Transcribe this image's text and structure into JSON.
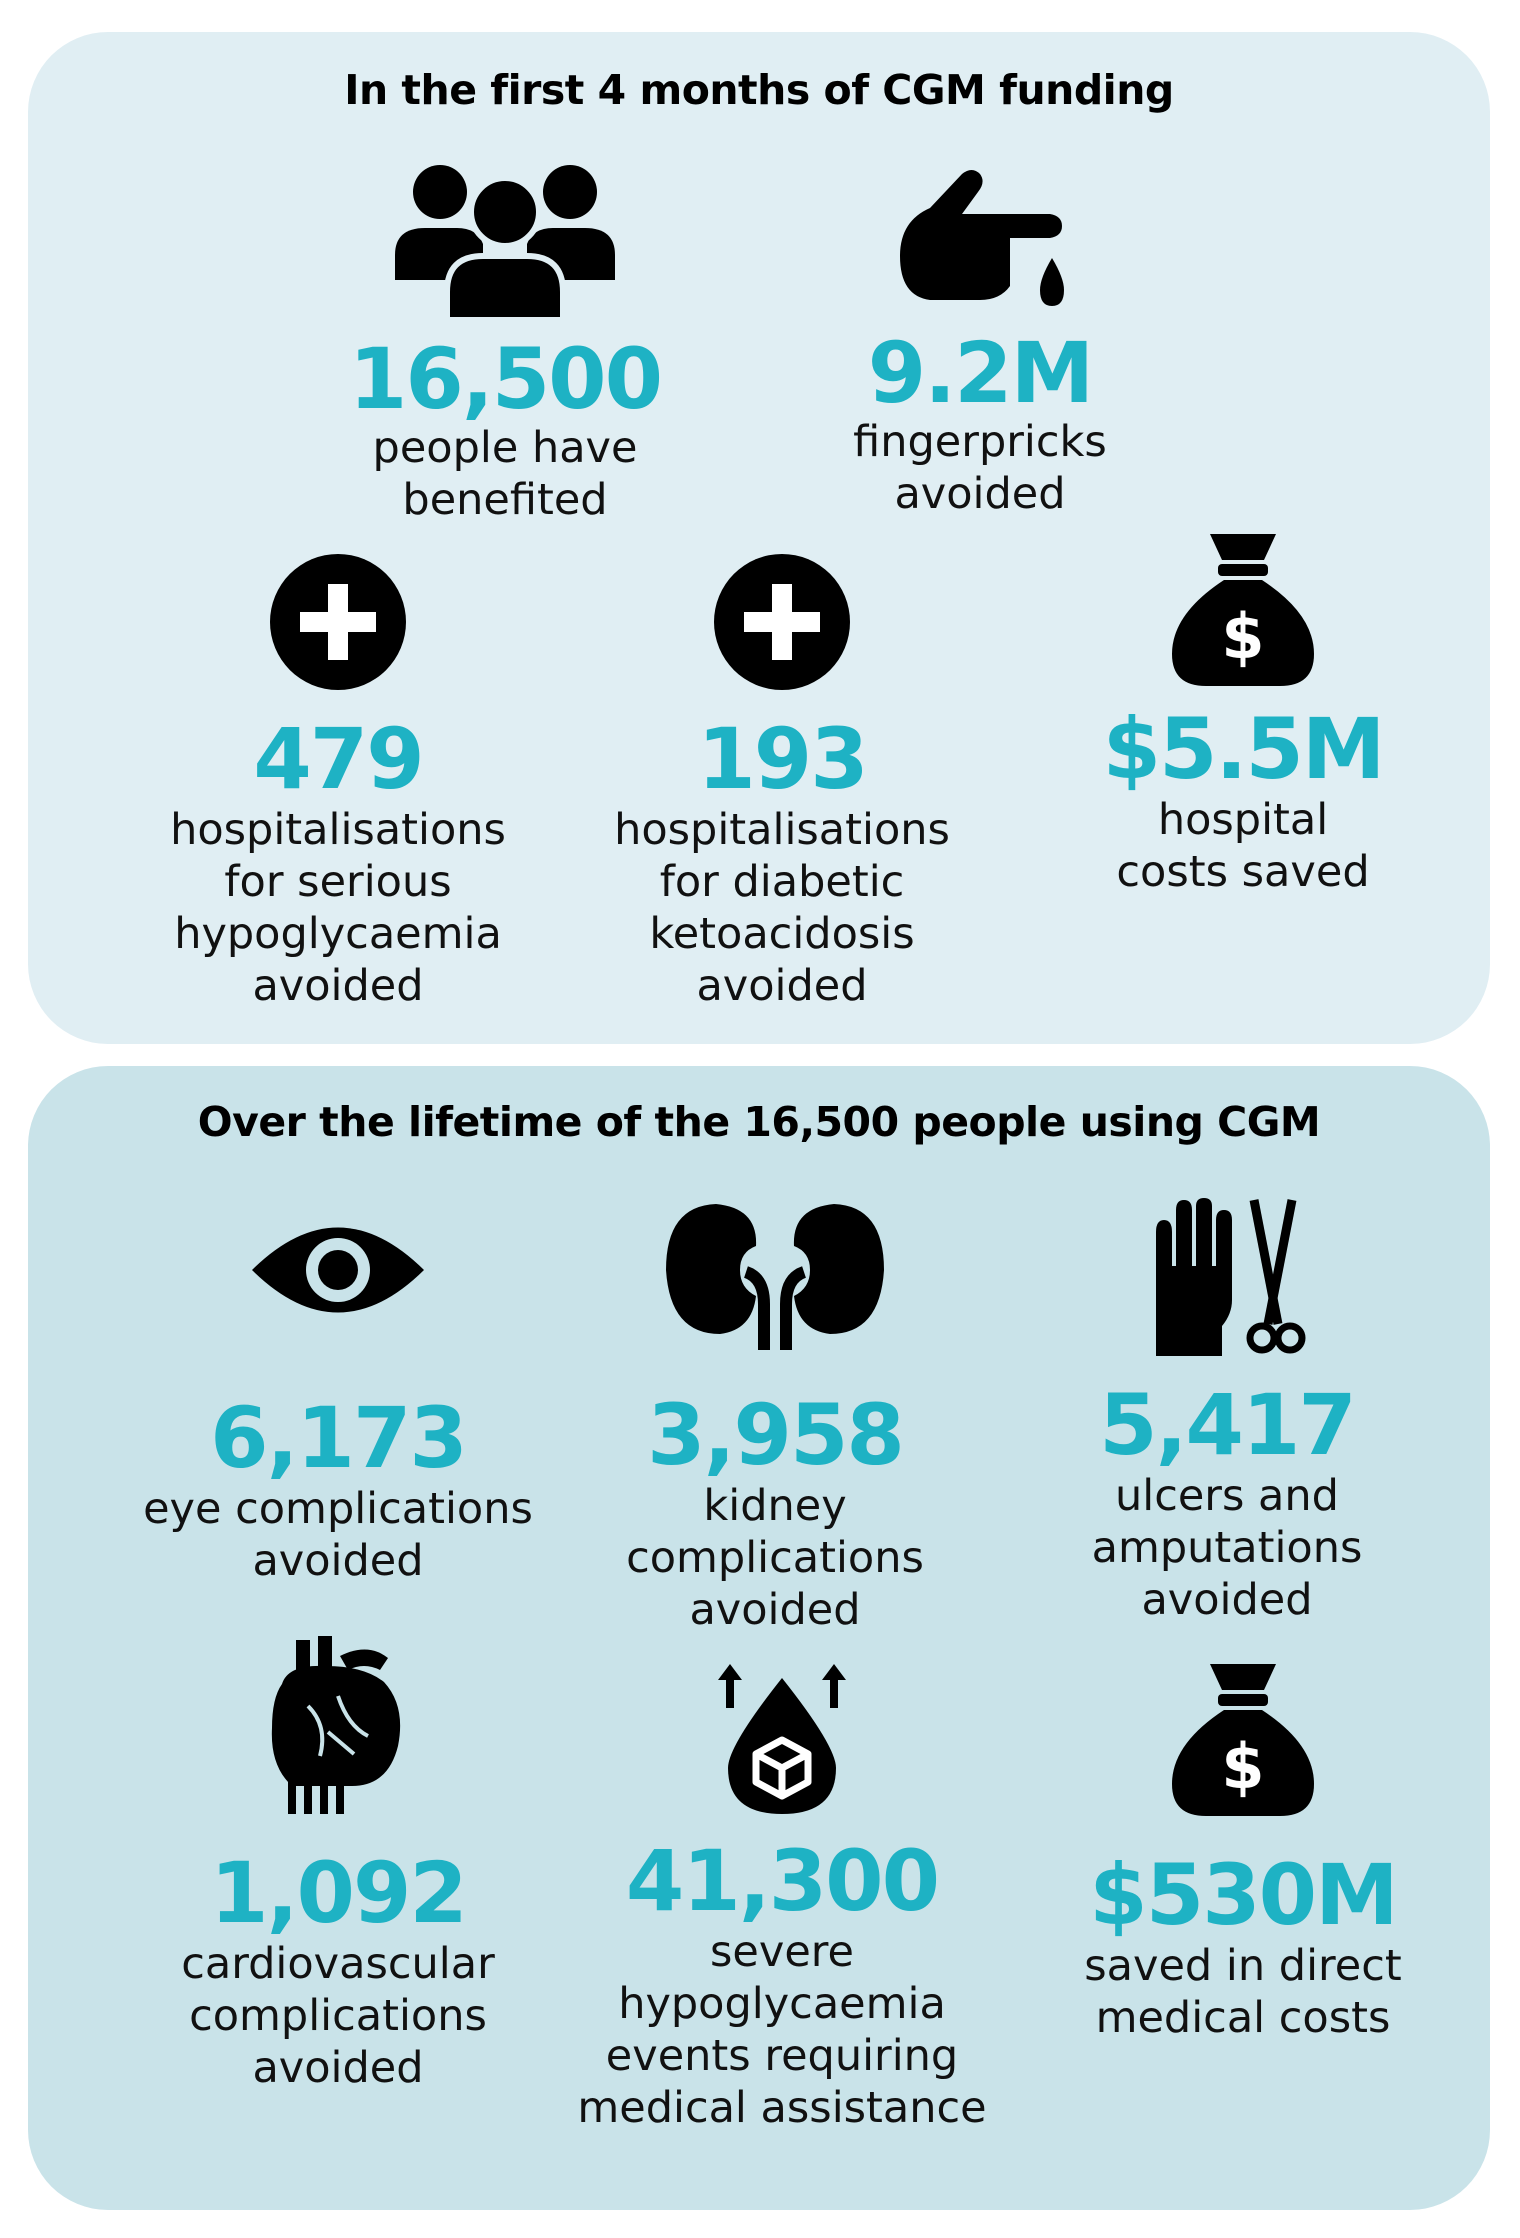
{
  "section1": {
    "heading": "In the first 4 months of CGM funding",
    "stats": [
      {
        "value": "16,500",
        "label": "people have\nbenefited",
        "icon": "people-group-icon"
      },
      {
        "value": "9.2M",
        "label": "fingerpricks\navoided",
        "icon": "fingerprick-icon"
      },
      {
        "value": "479",
        "label": "hospitalisations\nfor serious\nhypoglycaemia\navoided",
        "icon": "medical-cross-icon"
      },
      {
        "value": "193",
        "label": "hospitalisations\nfor diabetic\nketoacidosis\navoided",
        "icon": "medical-cross-icon"
      },
      {
        "value": "$5.5M",
        "label": "hospital\ncosts saved",
        "icon": "money-bag-icon"
      }
    ]
  },
  "section2": {
    "heading": "Over the lifetime of the 16,500 people using CGM",
    "stats": [
      {
        "value": "6,173",
        "label": "eye complications\navoided",
        "icon": "eye-icon"
      },
      {
        "value": "3,958",
        "label": "kidney\ncomplications\navoided",
        "icon": "kidney-icon"
      },
      {
        "value": "5,417",
        "label": "ulcers and\namputations\navoided",
        "icon": "glove-scissors-icon"
      },
      {
        "value": "1,092",
        "label": "cardiovascular\ncomplications\navoided",
        "icon": "heart-icon"
      },
      {
        "value": "41,300",
        "label": "severe\nhypoglycaemia\nevents requiring\nmedical assistance",
        "icon": "glucose-drop-icon"
      },
      {
        "value": "$530M",
        "label": "saved in direct\nmedical costs",
        "icon": "money-bag-icon"
      }
    ]
  },
  "colors": {
    "accent": "#1eb2c4",
    "panel1": "#e0eef3",
    "panel2": "#c9e3e9"
  }
}
